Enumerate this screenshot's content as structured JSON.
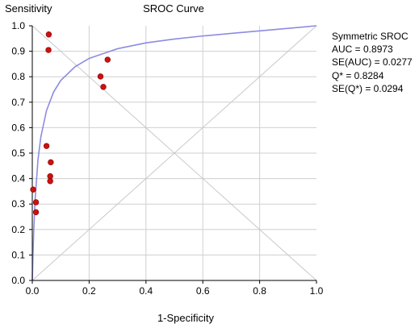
{
  "chart_data": {
    "type": "scatter",
    "title": "SROC  Curve",
    "xlabel": "1-Specificity",
    "ylabel": "Sensitivity",
    "xlim": [
      0,
      1
    ],
    "ylim": [
      0,
      1
    ],
    "x_ticks": [
      "0.0",
      "0.2",
      "0.4",
      "0.6",
      "0.8",
      "1.0"
    ],
    "y_ticks": [
      "0.0",
      "0.1",
      "0.2",
      "0.3",
      "0.4",
      "0.5",
      "0.6",
      "0.7",
      "0.8",
      "0.9",
      "1.0"
    ],
    "grid": true,
    "points": [
      {
        "x": 0.058,
        "y": 0.966
      },
      {
        "x": 0.057,
        "y": 0.905
      },
      {
        "x": 0.265,
        "y": 0.867
      },
      {
        "x": 0.24,
        "y": 0.801
      },
      {
        "x": 0.25,
        "y": 0.76
      },
      {
        "x": 0.05,
        "y": 0.528
      },
      {
        "x": 0.065,
        "y": 0.464
      },
      {
        "x": 0.063,
        "y": 0.409
      },
      {
        "x": 0.063,
        "y": 0.39
      },
      {
        "x": 0.003,
        "y": 0.357
      },
      {
        "x": 0.013,
        "y": 0.307
      },
      {
        "x": 0.013,
        "y": 0.268
      }
    ],
    "sroc_curve": {
      "x": [
        0,
        0.002,
        0.005,
        0.01,
        0.02,
        0.03,
        0.05,
        0.075,
        0.1,
        0.15,
        0.2,
        0.3,
        0.4,
        0.5,
        0.6,
        0.7,
        0.8,
        0.9,
        1.0
      ],
      "y": [
        0,
        0.087,
        0.192,
        0.32,
        0.474,
        0.563,
        0.667,
        0.74,
        0.785,
        0.839,
        0.872,
        0.91,
        0.933,
        0.948,
        0.96,
        0.97,
        0.98,
        0.99,
        1.0
      ]
    },
    "colors": {
      "points": "#cc1111",
      "curve": "#8c8ce0",
      "axes": "#000000",
      "grid": "#cfcfcf"
    }
  },
  "stats": {
    "heading": "Symmetric SROC",
    "auc": "AUC = 0.8973",
    "se_auc": "SE(AUC) = 0.0277",
    "q": "Q* = 0.8284",
    "se_q": "SE(Q*) = 0.0294"
  }
}
